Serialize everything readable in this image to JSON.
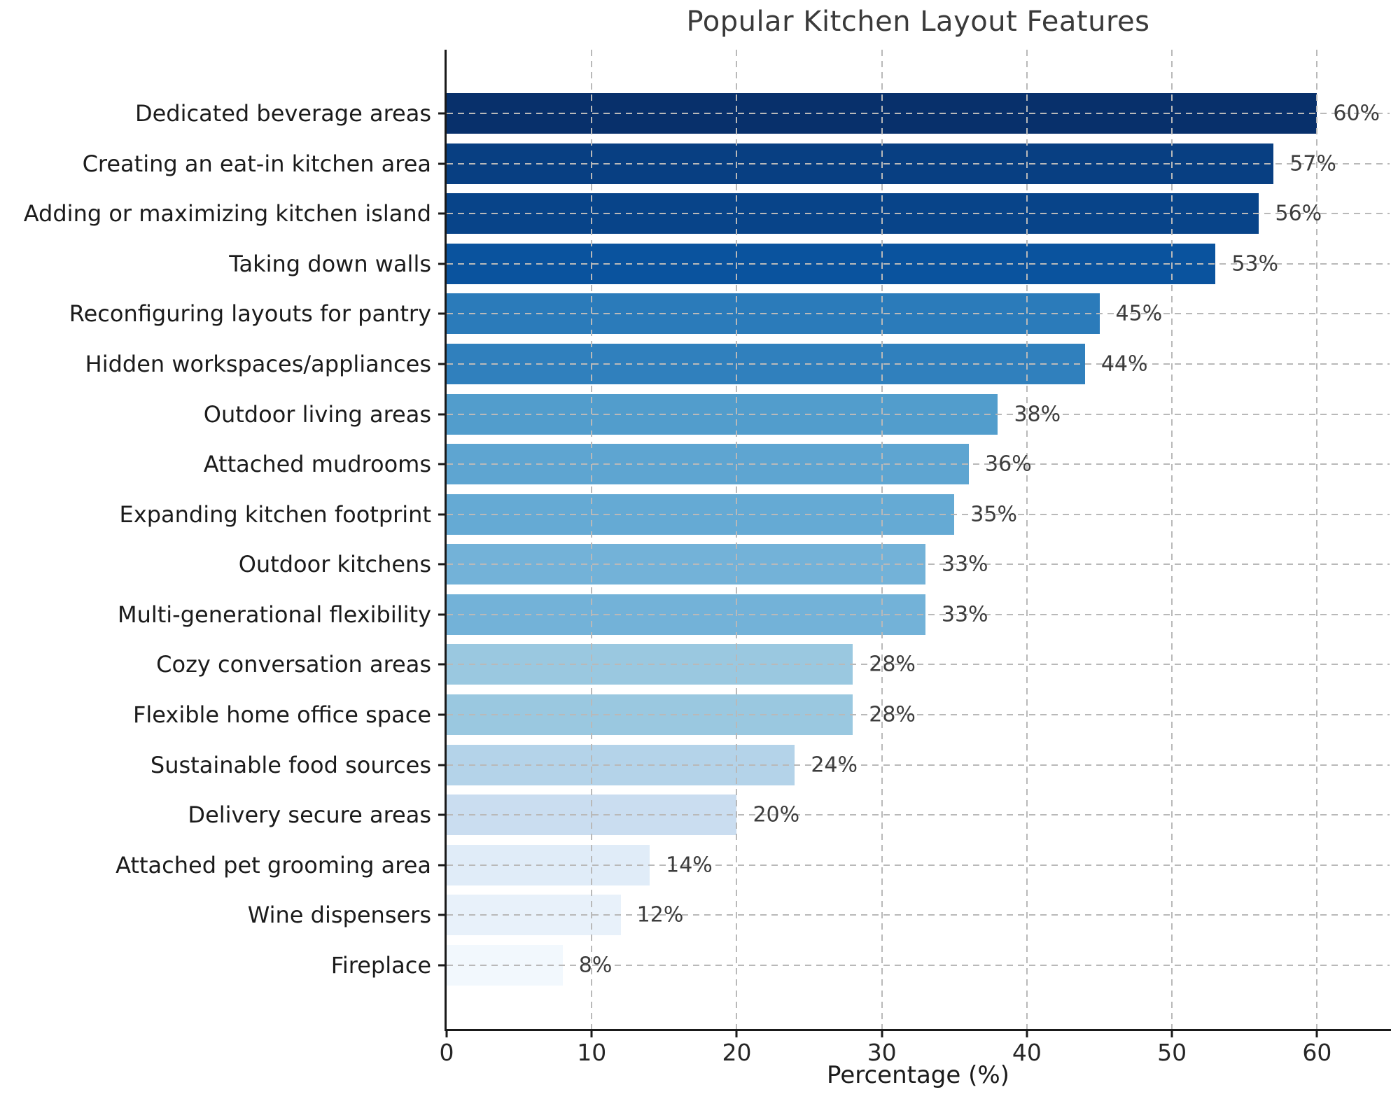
{
  "chart_data": {
    "type": "bar",
    "orientation": "horizontal",
    "title": "Popular Kitchen Layout Features",
    "xlabel": "Percentage (%)",
    "ylabel": "",
    "categories": [
      "Dedicated beverage areas",
      "Creating an eat-in kitchen area",
      "Adding or maximizing kitchen island",
      "Taking down walls",
      "Reconfiguring layouts for pantry",
      "Hidden workspaces/appliances",
      "Outdoor living areas",
      "Attached mudrooms",
      "Expanding kitchen footprint",
      "Outdoor kitchens",
      "Multi-generational flexibility",
      "Cozy conversation areas",
      "Flexible home office space",
      "Sustainable food sources",
      "Delivery secure areas",
      "Attached pet grooming area",
      "Wine dispensers",
      "Fireplace"
    ],
    "values": [
      60,
      57,
      56,
      53,
      45,
      44,
      38,
      36,
      35,
      33,
      33,
      28,
      28,
      24,
      20,
      14,
      12,
      8
    ],
    "value_labels": [
      "60%",
      "57%",
      "56%",
      "53%",
      "45%",
      "44%",
      "38%",
      "36%",
      "35%",
      "33%",
      "33%",
      "28%",
      "28%",
      "24%",
      "20%",
      "14%",
      "12%",
      "8%"
    ],
    "bar_colors": [
      "#08306B",
      "#083F82",
      "#084489",
      "#0A539E",
      "#2B7BBA",
      "#3080BD",
      "#529DCC",
      "#5EA5D1",
      "#65AAD4",
      "#73B2D8",
      "#73B2D8",
      "#9AC8E0",
      "#9AC8E0",
      "#B4D3E9",
      "#CADDF0",
      "#E0ECF8",
      "#E8F1FA",
      "#F2F8FD"
    ],
    "xticks": [
      0,
      10,
      20,
      30,
      40,
      50,
      60
    ],
    "xlim": [
      0,
      65
    ],
    "grid": "dashed gridlines on both axes, drawn over bars",
    "legend": "none",
    "style_colors": {
      "background": "#ffffff",
      "title_text": "#3a3a3a",
      "category_text": "#1b1b1b",
      "tick_text": "#262626",
      "value_label_text": "#3d3d3d",
      "axis_line": "#1a1a1a",
      "gridline": "#b9b9b9"
    }
  }
}
